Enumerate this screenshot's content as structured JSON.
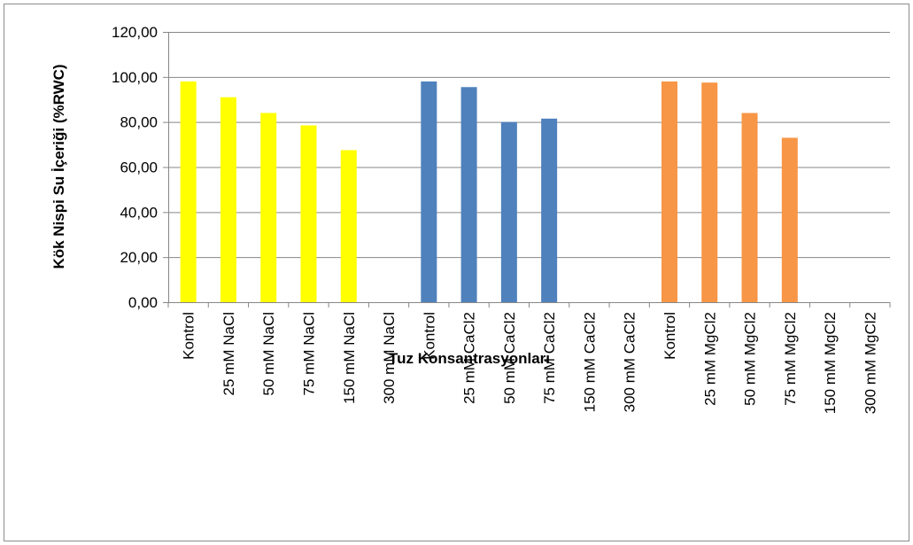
{
  "chart_data": {
    "type": "bar",
    "y_label": "Kök  Nispi Su İçeriği (%RWC)",
    "x_label": "Tuz Konsantrasyonları",
    "categories": [
      "Kontrol",
      "25 mM NaCl",
      "50 mM NaCl",
      "75 mM NaCl",
      "150 mM NaCl",
      "300 mM NaCl",
      "Kontrol",
      "25 mM CaCl2",
      "50 mM CaCl2",
      "75 mM CaCl2",
      "150 mM CaCl2",
      "300 mM CaCl2",
      "Kontrol",
      "25 mM MgCl2",
      "50 mM MgCl2",
      "75 mM MgCl2",
      "150 mM MgCl2",
      "300 mM MgCl2"
    ],
    "values": [
      98,
      91,
      84,
      78.5,
      67.5,
      null,
      98,
      95.5,
      80,
      81.5,
      null,
      null,
      98,
      97.5,
      84,
      73,
      null,
      null
    ],
    "colors": [
      "#ffff00",
      "#ffff00",
      "#ffff00",
      "#ffff00",
      "#ffff00",
      "#ffff00",
      "#4f81bd",
      "#4f81bd",
      "#4f81bd",
      "#4f81bd",
      "#4f81bd",
      "#4f81bd",
      "#f79646",
      "#f79646",
      "#f79646",
      "#f79646",
      "#f79646",
      "#f79646"
    ],
    "ylim": [
      0,
      120
    ],
    "yticks": [
      {
        "value": 0,
        "label": "0,00"
      },
      {
        "value": 20,
        "label": "20,00"
      },
      {
        "value": 40,
        "label": "40,00"
      },
      {
        "value": 60,
        "label": "60,00"
      },
      {
        "value": 80,
        "label": "80,00"
      },
      {
        "value": 100,
        "label": "100,00"
      },
      {
        "value": 120,
        "label": "120,00"
      }
    ],
    "grid": true
  }
}
